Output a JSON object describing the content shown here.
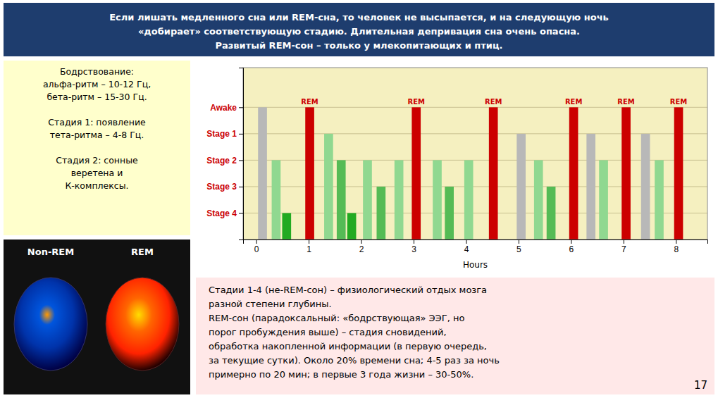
{
  "chart_data": {
    "type": "bar",
    "title": "Если лишать медленного сна или REM-сна, то человек не высыпается, и на следующую ночь\n«добирает» соответствующую стадию. Длительная депривация сна очень опасна.\nРазвитый REM-сон – только у млекопитающих и птиц.",
    "x_label": "Hours",
    "x": [
      0.12,
      0.38,
      0.58,
      1.02,
      1.38,
      1.62,
      1.82,
      2.12,
      2.38,
      2.72,
      3.05,
      3.45,
      3.68,
      4.05,
      4.52,
      5.05,
      5.38,
      5.62,
      6.05,
      6.38,
      6.62,
      7.05,
      7.42,
      7.68,
      8.05
    ],
    "values": [
      5,
      3,
      1,
      5,
      4,
      3,
      1,
      3,
      2,
      3,
      5,
      3,
      2,
      3,
      5,
      4,
      3,
      2,
      5,
      4,
      3,
      5,
      4,
      3,
      5
    ],
    "colors": [
      "#b8b8b8",
      "#90d890",
      "#22aa22",
      "#cc0000",
      "#90d890",
      "#55bb55",
      "#22aa22",
      "#90d890",
      "#55bb55",
      "#90d890",
      "#cc0000",
      "#90d890",
      "#55bb55",
      "#90d890",
      "#cc0000",
      "#b8b8b8",
      "#90d890",
      "#55bb55",
      "#cc0000",
      "#b8b8b8",
      "#90d890",
      "#cc0000",
      "#b8b8b8",
      "#90d890",
      "#cc0000"
    ],
    "xlim": [
      -0.25,
      8.6
    ],
    "xticks": [
      0,
      1,
      2,
      3,
      4,
      5,
      6,
      7,
      8
    ],
    "ylim": [
      0,
      6.5
    ],
    "yticks": [
      {
        "value": 1,
        "label": "Stage 4"
      },
      {
        "value": 2,
        "label": "Stage 3"
      },
      {
        "value": 3,
        "label": "Stage 2"
      },
      {
        "value": 4,
        "label": "Stage 1"
      },
      {
        "value": 5,
        "label": "Awake"
      }
    ],
    "grid": true,
    "annotations": [
      {
        "text": "Бодрствование:\nальфа-ритм – 10-12 Гц,\nбета-ритм – 15-30 Гц.\n\nСтадия 1: появление\nтета-ритма – 4-8 Гц.\n\nСтадия 2: сонные\nверетена и\nК-комплексы."
      },
      {
        "text": "Non-REM"
      },
      {
        "text": "REM"
      },
      {
        "text": "Стадии 1-4 (не-REM-сон) – физиологический отдых мозга\nразной степени глубины.\nREM-сон (парадоксальный: «бодрствующая» ЭЭГ, но\nпорог пробуждения выше) – стадия сновидений,\nобработка накопленной информации (в первую очередь,\nза текущие сутки). Около 20% времени сна; 4-5 раз за ночь\nпримерно по 20 мин; в первые 3 года жизни – 30-50%."
      },
      {
        "text": "17"
      },
      {
        "text": "REM",
        "x": 1.02,
        "y": 5,
        "color": "#cc0000"
      },
      {
        "text": "REM",
        "x": 3.05,
        "y": 5,
        "color": "#cc0000"
      },
      {
        "text": "REM",
        "x": 4.52,
        "y": 5,
        "color": "#cc0000"
      },
      {
        "text": "REM",
        "x": 6.05,
        "y": 5,
        "color": "#cc0000"
      },
      {
        "text": "REM",
        "x": 7.05,
        "y": 5,
        "color": "#cc0000"
      },
      {
        "text": "REM",
        "x": 8.05,
        "y": 5,
        "color": "#cc0000"
      }
    ]
  }
}
